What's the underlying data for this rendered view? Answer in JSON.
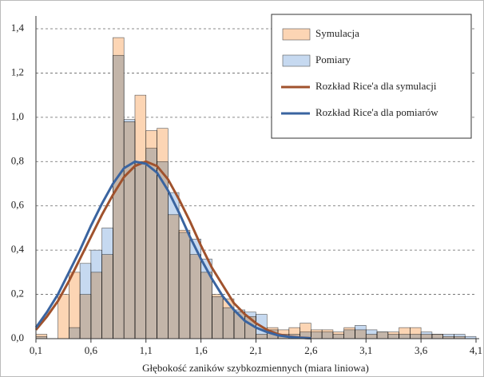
{
  "chart_data": {
    "type": "histogram",
    "x_label": "Głębokość zaników szybkozmiennych (miara liniowa)",
    "bins": [
      0.1,
      0.2,
      0.3,
      0.4,
      0.5,
      0.6,
      0.7,
      0.8,
      0.9,
      1.0,
      1.1,
      1.2,
      1.3,
      1.4,
      1.5,
      1.6,
      1.7,
      1.8,
      1.9,
      2.0,
      2.1,
      2.2,
      2.3,
      2.4,
      2.5,
      2.6,
      2.7,
      2.8,
      2.9,
      3.0,
      3.1,
      3.2,
      3.3,
      3.4,
      3.5,
      3.6,
      3.7,
      3.8,
      3.9,
      4.0,
      4.1
    ],
    "series": [
      {
        "name": "Symulacja",
        "type": "histogram",
        "color": "#fcd5b4",
        "values": [
          0.02,
          0,
          0.2,
          0.3,
          0.2,
          0.3,
          0.38,
          1.36,
          0.98,
          1.1,
          0.94,
          0.95,
          0.56,
          0.49,
          0.38,
          0.3,
          0.2,
          0.18,
          0.12,
          0.1,
          0.02,
          0.05,
          0.04,
          0.05,
          0.07,
          0.04,
          0.04,
          0.03,
          0.05,
          0.04,
          0.02,
          0.03,
          0.03,
          0.05,
          0.05,
          0.02,
          0.02,
          0.01,
          0.01,
          0
        ]
      },
      {
        "name": "Pomiary",
        "type": "histogram",
        "color": "#c6d9f0",
        "values": [
          0.01,
          0,
          0,
          0.05,
          0.34,
          0.4,
          0.5,
          1.28,
          0.99,
          0.8,
          0.86,
          0.8,
          0.66,
          0.48,
          0.45,
          0.36,
          0.19,
          0.14,
          0.13,
          0.12,
          0.11,
          0.04,
          0.02,
          0.02,
          0.03,
          0.03,
          0.03,
          0.02,
          0.04,
          0.06,
          0.04,
          0.03,
          0.02,
          0.02,
          0.02,
          0.03,
          0.02,
          0.02,
          0.02,
          0.01
        ]
      },
      {
        "name": "Rozkład Rice'a dla symulacji",
        "type": "line",
        "color": "#a0522d",
        "x": [
          0.1,
          0.2,
          0.3,
          0.4,
          0.5,
          0.6,
          0.7,
          0.8,
          0.9,
          1.0,
          1.1,
          1.2,
          1.3,
          1.4,
          1.5,
          1.6,
          1.7,
          1.8,
          1.9,
          2.0,
          2.1,
          2.2,
          2.3,
          2.4,
          2.5,
          2.6
        ],
        "values": [
          0.04,
          0.1,
          0.17,
          0.26,
          0.36,
          0.46,
          0.56,
          0.65,
          0.73,
          0.78,
          0.8,
          0.78,
          0.72,
          0.63,
          0.53,
          0.42,
          0.32,
          0.24,
          0.16,
          0.11,
          0.07,
          0.04,
          0.02,
          0.01,
          0.005,
          0.002
        ]
      },
      {
        "name": "Rozkład Rice'a dla pomiarów",
        "type": "line",
        "color": "#3a64a0",
        "x": [
          0.1,
          0.2,
          0.3,
          0.4,
          0.5,
          0.6,
          0.7,
          0.8,
          0.9,
          1.0,
          1.1,
          1.2,
          1.3,
          1.4,
          1.5,
          1.6,
          1.7,
          1.8,
          1.9,
          2.0,
          2.1,
          2.2,
          2.3,
          2.4,
          2.5,
          2.6
        ],
        "values": [
          0.05,
          0.12,
          0.2,
          0.3,
          0.4,
          0.51,
          0.61,
          0.7,
          0.77,
          0.8,
          0.79,
          0.75,
          0.67,
          0.57,
          0.46,
          0.36,
          0.27,
          0.19,
          0.13,
          0.08,
          0.05,
          0.03,
          0.015,
          0.008,
          0.004,
          0.002
        ]
      }
    ],
    "xlim": [
      0.1,
      4.1
    ],
    "xticks": [
      {
        "value": 0.1,
        "label": "0,1"
      },
      {
        "value": 0.6,
        "label": "0,6"
      },
      {
        "value": 1.1,
        "label": "1,1"
      },
      {
        "value": 1.6,
        "label": "1,6"
      },
      {
        "value": 2.1,
        "label": "2,1"
      },
      {
        "value": 2.6,
        "label": "2,6"
      },
      {
        "value": 3.1,
        "label": "3,1"
      },
      {
        "value": 3.6,
        "label": "3,6"
      },
      {
        "value": 4.1,
        "label": "4,1"
      }
    ],
    "ylim": [
      0,
      1.4
    ],
    "yticks": [
      {
        "value": 0,
        "label": "0,0"
      },
      {
        "value": 0.2,
        "label": "0,2"
      },
      {
        "value": 0.4,
        "label": "0,4"
      },
      {
        "value": 0.6,
        "label": "0,6"
      },
      {
        "value": 0.8,
        "label": "0,8"
      },
      {
        "value": 1.0,
        "label": "1,0"
      },
      {
        "value": 1.2,
        "label": "1,2"
      },
      {
        "value": 1.4,
        "label": "1,4"
      }
    ],
    "grid": true,
    "legend": "upper right"
  }
}
